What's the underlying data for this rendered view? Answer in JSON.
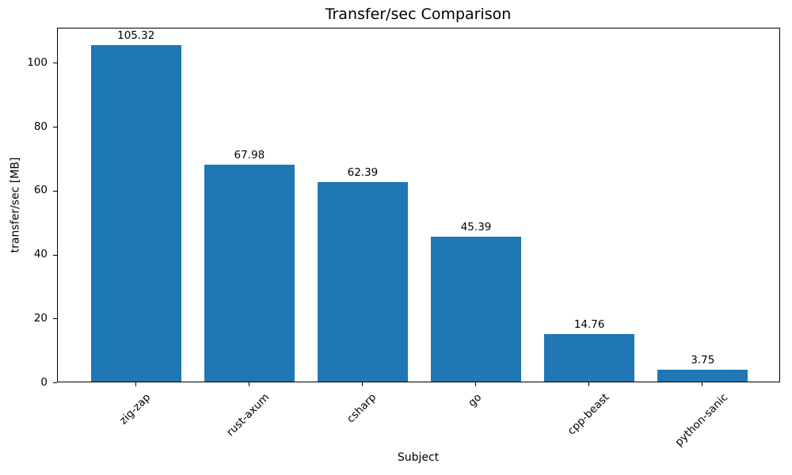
{
  "chart_data": {
    "type": "bar",
    "title": "Transfer/sec Comparison",
    "xlabel": "Subject",
    "ylabel": "transfer/sec [MB]",
    "categories": [
      "zig-zap",
      "rust-axum",
      "csharp",
      "go",
      "cpp-beast",
      "python-sanic"
    ],
    "values": [
      105.32,
      67.98,
      62.39,
      45.39,
      14.76,
      3.75
    ],
    "bar_labels": [
      "105.32",
      "67.98",
      "62.39",
      "45.39",
      "14.76",
      "3.75"
    ],
    "yticks": [
      0,
      20,
      40,
      60,
      80,
      100
    ],
    "ylim": [
      0,
      111
    ],
    "x_tick_rotation_deg": 45,
    "grid": false,
    "legend": null,
    "bar_color": "#1f77b4",
    "text_color": "#000000",
    "spine_color": "#000000",
    "background_color": "#ffffff"
  }
}
